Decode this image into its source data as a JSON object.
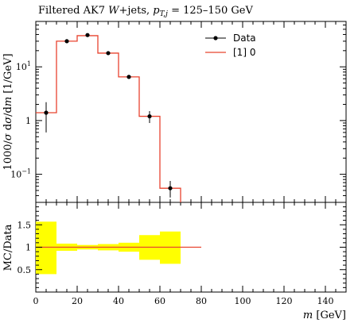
{
  "title": "Filtered AK7 W+jets, p_T,j = 125–150 GeV",
  "title_parts": {
    "prefix": "Filtered AK7 ",
    "w": "W",
    "jets": "+jets, ",
    "pt": "p",
    "pt_sub": "T,j",
    "range": " = 125–150 GeV"
  },
  "ylabel_main": "1000/σ dσ/dm [1/GeV]",
  "ylabel_ratio": "MC/Data",
  "xlabel": "m [GeV]",
  "xlabel_parts": {
    "var": "m",
    "unit": " [GeV]"
  },
  "legend": {
    "data_label": "Data",
    "mc_label": "[1] 0"
  },
  "colors": {
    "mc_line": "#e8432f",
    "band": "#ffff00",
    "data": "#000000"
  },
  "chart_data": [
    {
      "type": "line",
      "panel": "main",
      "yscale": "log",
      "xlim": [
        0,
        150
      ],
      "ylim": [
        0.03,
        70
      ],
      "y_ticks": [
        {
          "value": 0.1,
          "label": "10^-1"
        },
        {
          "value": 1,
          "label": "1"
        },
        {
          "value": 10,
          "label": "10^1"
        }
      ],
      "series": [
        {
          "name": "Data",
          "style": "points",
          "x": [
            5,
            15,
            25,
            35,
            45,
            55,
            65
          ],
          "y": [
            1.4,
            30,
            39,
            18,
            6.5,
            1.2,
            0.055
          ],
          "yerr_low": [
            0.8,
            0,
            0,
            0,
            0,
            0.3,
            0.018
          ],
          "yerr_high": [
            0.8,
            0,
            0,
            0,
            0,
            0.3,
            0.02
          ]
        },
        {
          "name": "[1] 0",
          "style": "step",
          "bin_edges": [
            0,
            10,
            20,
            30,
            40,
            50,
            60,
            70
          ],
          "values": [
            1.4,
            30,
            38,
            18,
            6.5,
            1.2,
            0.055
          ]
        }
      ]
    },
    {
      "type": "area",
      "panel": "ratio",
      "xlim": [
        0,
        150
      ],
      "ylim": [
        0,
        2
      ],
      "y_ticks": [
        0.5,
        1,
        1.5
      ],
      "x_ticks": [
        0,
        20,
        40,
        60,
        80,
        100,
        120,
        140
      ],
      "series": [
        {
          "name": "Data uncertainty",
          "bin_edges": [
            0,
            10,
            20,
            30,
            40,
            50,
            60,
            70
          ],
          "low": [
            0.4,
            0.92,
            0.95,
            0.93,
            0.9,
            0.72,
            0.63
          ],
          "high": [
            1.57,
            1.08,
            1.05,
            1.07,
            1.1,
            1.27,
            1.35
          ]
        },
        {
          "name": "[1] 0",
          "x": [
            0,
            80
          ],
          "y": [
            1,
            1
          ]
        }
      ]
    }
  ]
}
